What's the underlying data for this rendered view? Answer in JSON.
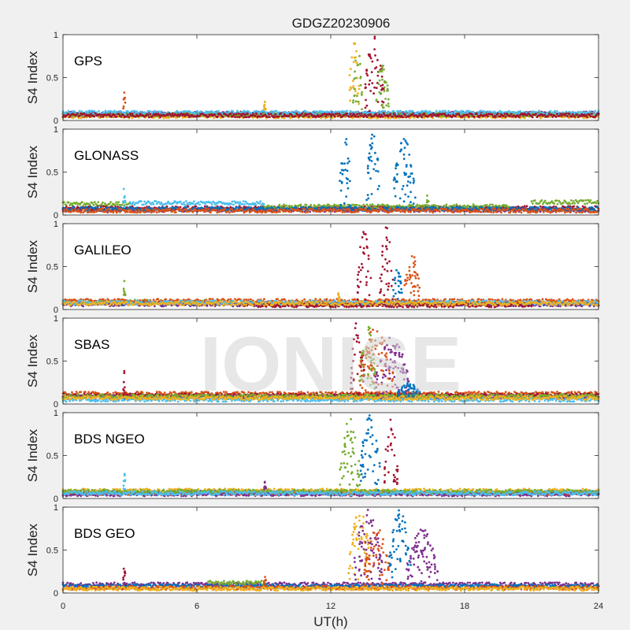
{
  "chart_data": {
    "type": "scatter",
    "title": "GDGZ20230906",
    "xlabel": "UT(h)",
    "ylabel": "S4 Index",
    "xlim": [
      0,
      24
    ],
    "ylim": [
      0,
      1
    ],
    "xticks": [
      "0",
      "6",
      "12",
      "18",
      "24"
    ],
    "yticks": [
      "0",
      "0.5",
      "1"
    ],
    "watermark": "IONISE",
    "grid": false,
    "colors": [
      "#0072bd",
      "#d95319",
      "#edb120",
      "#7e2f8e",
      "#77ac30",
      "#4dbeee",
      "#a2142f"
    ],
    "panels": [
      {
        "name": "GPS",
        "baseline": [
          {
            "color": "#0072bd",
            "x_start": 0,
            "x_end": 24,
            "level": 0.07
          },
          {
            "color": "#d95319",
            "x_start": 0,
            "x_end": 24,
            "level": 0.06
          },
          {
            "color": "#edb120",
            "x_start": 0,
            "x_end": 24,
            "level": 0.05
          },
          {
            "color": "#7e2f8e",
            "x_start": 0,
            "x_end": 24,
            "level": 0.08
          },
          {
            "color": "#77ac30",
            "x_start": 0,
            "x_end": 24,
            "level": 0.07
          },
          {
            "color": "#4dbeee",
            "x_start": 0,
            "x_end": 24,
            "level": 0.09
          },
          {
            "color": "#a2142f",
            "x_start": 0,
            "x_end": 24,
            "level": 0.06
          }
        ],
        "bursts": [
          {
            "color": "#edb120",
            "x_start": 12.8,
            "x_end": 13.3,
            "y_max": 0.92
          },
          {
            "color": "#77ac30",
            "x_start": 13.0,
            "x_end": 13.4,
            "y_max": 0.88
          },
          {
            "color": "#a2142f",
            "x_start": 13.5,
            "x_end": 14.4,
            "y_max": 0.98
          },
          {
            "color": "#77ac30",
            "x_start": 14.0,
            "x_end": 14.6,
            "y_max": 0.7
          },
          {
            "color": "#d95319",
            "x_start": 2.7,
            "x_end": 2.8,
            "y_max": 0.38
          },
          {
            "color": "#edb120",
            "x_start": 9.0,
            "x_end": 9.1,
            "y_max": 0.22
          }
        ]
      },
      {
        "name": "GLONASS",
        "baseline": [
          {
            "color": "#77ac30",
            "x_start": 0,
            "x_end": 3.0,
            "level": 0.13
          },
          {
            "color": "#4dbeee",
            "x_start": 3.0,
            "x_end": 9.0,
            "level": 0.14
          },
          {
            "color": "#7e2f8e",
            "x_start": 0,
            "x_end": 24,
            "level": 0.06
          },
          {
            "color": "#a2142f",
            "x_start": 0,
            "x_end": 24,
            "level": 0.08
          },
          {
            "color": "#77ac30",
            "x_start": 9.0,
            "x_end": 20.0,
            "level": 0.1
          },
          {
            "color": "#0072bd",
            "x_start": 0,
            "x_end": 24,
            "level": 0.07
          },
          {
            "color": "#d95319",
            "x_start": 0,
            "x_end": 24,
            "level": 0.05
          },
          {
            "color": "#77ac30",
            "x_start": 21.0,
            "x_end": 24,
            "level": 0.15
          }
        ],
        "bursts": [
          {
            "color": "#0072bd",
            "x_start": 12.4,
            "x_end": 12.9,
            "y_max": 0.98
          },
          {
            "color": "#0072bd",
            "x_start": 13.6,
            "x_end": 14.2,
            "y_max": 0.97
          },
          {
            "color": "#0072bd",
            "x_start": 14.8,
            "x_end": 15.8,
            "y_max": 0.9
          },
          {
            "color": "#77ac30",
            "x_start": 16.3,
            "x_end": 16.4,
            "y_max": 0.3
          },
          {
            "color": "#4dbeee",
            "x_start": 2.7,
            "x_end": 2.8,
            "y_max": 0.37
          }
        ]
      },
      {
        "name": "GALILEO",
        "baseline": [
          {
            "color": "#0072bd",
            "x_start": 0,
            "x_end": 24,
            "level": 0.07
          },
          {
            "color": "#77ac30",
            "x_start": 0,
            "x_end": 7.0,
            "level": 0.09
          },
          {
            "color": "#d95319",
            "x_start": 0,
            "x_end": 24,
            "level": 0.1
          },
          {
            "color": "#7e2f8e",
            "x_start": 0,
            "x_end": 24,
            "level": 0.06
          },
          {
            "color": "#4dbeee",
            "x_start": 0,
            "x_end": 24,
            "level": 0.08
          },
          {
            "color": "#a2142f",
            "x_start": 8.0,
            "x_end": 21.0,
            "level": 0.05
          },
          {
            "color": "#edb120",
            "x_start": 0,
            "x_end": 24,
            "level": 0.07
          }
        ],
        "bursts": [
          {
            "color": "#a2142f",
            "x_start": 13.2,
            "x_end": 13.8,
            "y_max": 0.98
          },
          {
            "color": "#a2142f",
            "x_start": 14.2,
            "x_end": 14.8,
            "y_max": 0.97
          },
          {
            "color": "#0072bd",
            "x_start": 14.8,
            "x_end": 15.2,
            "y_max": 0.5
          },
          {
            "color": "#d95319",
            "x_start": 15.3,
            "x_end": 16.0,
            "y_max": 0.65
          },
          {
            "color": "#77ac30",
            "x_start": 2.7,
            "x_end": 2.8,
            "y_max": 0.38
          },
          {
            "color": "#edb120",
            "x_start": 12.3,
            "x_end": 12.4,
            "y_max": 0.2
          }
        ]
      },
      {
        "name": "SBAS",
        "baseline": [
          {
            "color": "#d95319",
            "x_start": 0,
            "x_end": 24,
            "level": 0.12
          },
          {
            "color": "#a2142f",
            "x_start": 0,
            "x_end": 24,
            "level": 0.1
          },
          {
            "color": "#7e2f8e",
            "x_start": 0,
            "x_end": 24,
            "level": 0.08
          },
          {
            "color": "#4dbeee",
            "x_start": 0,
            "x_end": 24,
            "level": 0.05
          },
          {
            "color": "#77ac30",
            "x_start": 0,
            "x_end": 24,
            "level": 0.09
          },
          {
            "color": "#edb120",
            "x_start": 0,
            "x_end": 24,
            "level": 0.07
          }
        ],
        "bursts": [
          {
            "color": "#a2142f",
            "x_start": 12.9,
            "x_end": 13.5,
            "y_max": 0.98
          },
          {
            "color": "#d95319",
            "x_start": 13.2,
            "x_end": 14.8,
            "y_max": 0.9
          },
          {
            "color": "#77ac30",
            "x_start": 13.3,
            "x_end": 14.0,
            "y_max": 0.95
          },
          {
            "color": "#7e2f8e",
            "x_start": 14.0,
            "x_end": 15.5,
            "y_max": 0.8
          },
          {
            "color": "#0072bd",
            "x_start": 15.0,
            "x_end": 16.0,
            "y_max": 0.25
          },
          {
            "color": "#a2142f",
            "x_start": 2.7,
            "x_end": 2.8,
            "y_max": 0.4
          }
        ]
      },
      {
        "name": "BDS NGEO",
        "baseline": [
          {
            "color": "#0072bd",
            "x_start": 0,
            "x_end": 24,
            "level": 0.07
          },
          {
            "color": "#d95319",
            "x_start": 0,
            "x_end": 24,
            "level": 0.06
          },
          {
            "color": "#edb120",
            "x_start": 0,
            "x_end": 24,
            "level": 0.09
          },
          {
            "color": "#7e2f8e",
            "x_start": 0,
            "x_end": 24,
            "level": 0.05
          },
          {
            "color": "#77ac30",
            "x_start": 0,
            "x_end": 24,
            "level": 0.08
          },
          {
            "color": "#4dbeee",
            "x_start": 0,
            "x_end": 24,
            "level": 0.06
          }
        ],
        "bursts": [
          {
            "color": "#77ac30",
            "x_start": 12.4,
            "x_end": 13.3,
            "y_max": 0.95
          },
          {
            "color": "#0072bd",
            "x_start": 13.3,
            "x_end": 14.2,
            "y_max": 0.98
          },
          {
            "color": "#a2142f",
            "x_start": 14.4,
            "x_end": 15.0,
            "y_max": 0.98
          },
          {
            "color": "#4dbeee",
            "x_start": 2.7,
            "x_end": 2.8,
            "y_max": 0.3
          },
          {
            "color": "#7e2f8e",
            "x_start": 9.0,
            "x_end": 9.1,
            "y_max": 0.2
          }
        ]
      },
      {
        "name": "BDS GEO",
        "baseline": [
          {
            "color": "#7e2f8e",
            "x_start": 0,
            "x_end": 24,
            "level": 0.1
          },
          {
            "color": "#0072bd",
            "x_start": 0,
            "x_end": 24,
            "level": 0.08
          },
          {
            "color": "#d95319",
            "x_start": 0,
            "x_end": 24,
            "level": 0.06
          },
          {
            "color": "#edb120",
            "x_start": 0,
            "x_end": 24,
            "level": 0.05
          },
          {
            "color": "#77ac30",
            "x_start": 6.5,
            "x_end": 9.0,
            "level": 0.12
          }
        ],
        "bursts": [
          {
            "color": "#edb120",
            "x_start": 12.8,
            "x_end": 13.8,
            "y_max": 0.97
          },
          {
            "color": "#7e2f8e",
            "x_start": 13.0,
            "x_end": 14.3,
            "y_max": 0.98
          },
          {
            "color": "#d95319",
            "x_start": 13.5,
            "x_end": 14.6,
            "y_max": 0.8
          },
          {
            "color": "#0072bd",
            "x_start": 14.6,
            "x_end": 15.6,
            "y_max": 0.98
          },
          {
            "color": "#7e2f8e",
            "x_start": 15.4,
            "x_end": 16.8,
            "y_max": 0.75
          },
          {
            "color": "#a2142f",
            "x_start": 2.7,
            "x_end": 2.8,
            "y_max": 0.38
          },
          {
            "color": "#d95319",
            "x_start": 9.0,
            "x_end": 9.1,
            "y_max": 0.2
          }
        ]
      }
    ]
  }
}
